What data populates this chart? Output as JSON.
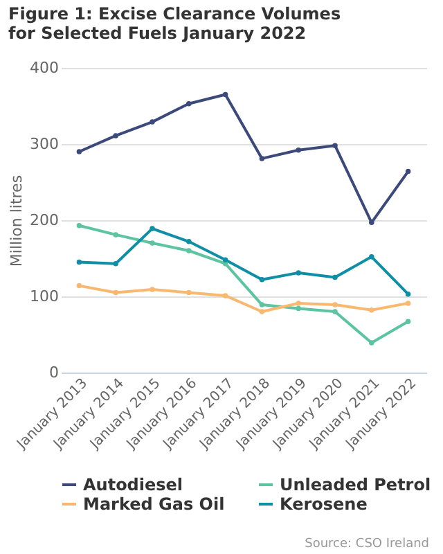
{
  "chart_data": {
    "type": "line",
    "title": "Figure 1: Excise Clearance Volumes for Selected Fuels January 2022",
    "ylabel": "Million litres",
    "categories": [
      "January 2013",
      "January 2014",
      "January 2015",
      "January 2016",
      "January 2017",
      "January 2018",
      "January 2019",
      "January 2020",
      "January 2021",
      "January 2022"
    ],
    "series": [
      {
        "name": "Autodiesel",
        "color": "#3b4a7b",
        "values": [
          290,
          311,
          329,
          353,
          365,
          281,
          292,
          298,
          197,
          264
        ]
      },
      {
        "name": "Unleaded Petrol",
        "color": "#5cc4a0",
        "values": [
          193,
          181,
          170,
          160,
          143,
          89,
          84,
          80,
          39,
          67
        ]
      },
      {
        "name": "Marked Gas Oil",
        "color": "#f9b870",
        "values": [
          114,
          105,
          109,
          105,
          101,
          80,
          91,
          89,
          82,
          91
        ]
      },
      {
        "name": "Kerosene",
        "color": "#0f8fa5",
        "values": [
          145,
          143,
          189,
          172,
          148,
          122,
          131,
          125,
          152,
          103
        ]
      }
    ],
    "ylim": [
      0,
      400
    ],
    "yticks": [
      0,
      100,
      200,
      300,
      400
    ],
    "grid": "y",
    "legend": "bottom",
    "marker": "circle",
    "line_style": "solid",
    "annotations": [
      "Source: CSO Ireland"
    ]
  }
}
